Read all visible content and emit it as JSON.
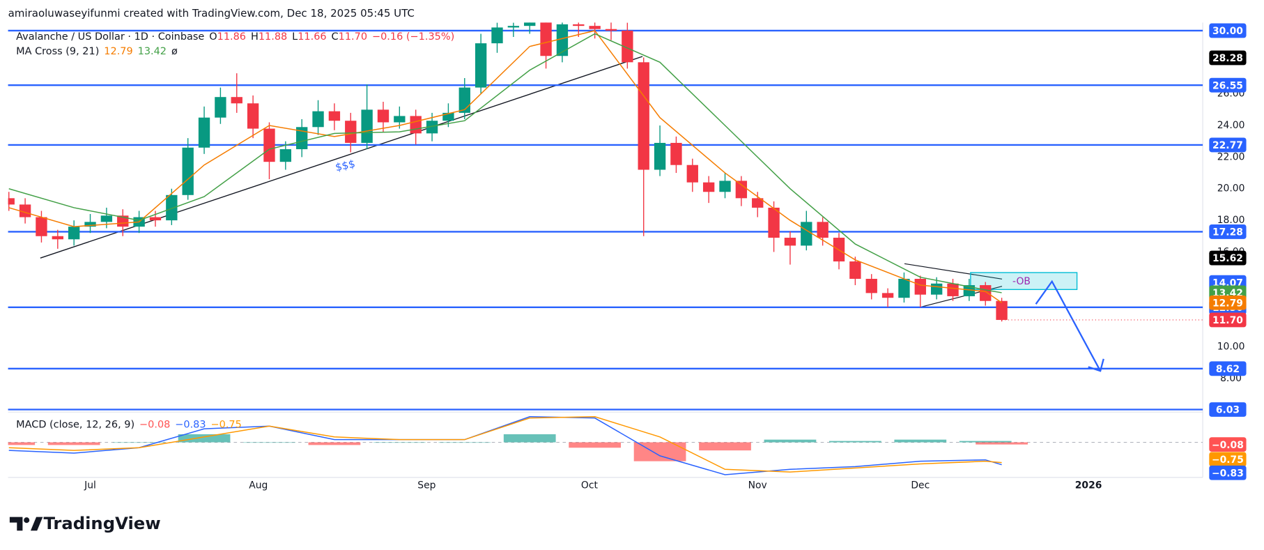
{
  "watermark": "amiraoluwaseyifunmi created with TradingView.com, Dec 18, 2025 05:45 UTC",
  "brand": "TradingView",
  "chart_data": {
    "type": "candlestick",
    "title": "Avalanche / US Dollar · 1D · Coinbase",
    "quote": [
      {
        "key": "O",
        "value": 11.86,
        "label": "11.86"
      },
      {
        "key": "H",
        "value": 11.88,
        "label": "11.88"
      },
      {
        "key": "L",
        "value": 11.66,
        "label": "11.66"
      },
      {
        "key": "C",
        "value": 11.7,
        "label": "11.70"
      }
    ],
    "change": {
      "value": -0.16,
      "label": "−0.16"
    },
    "change_pct": {
      "value": -1.35,
      "label": "(−1.35%)"
    },
    "up_color": "#089981",
    "down_color": "#f23645",
    "open": [
      19.4,
      19.0,
      18.2,
      17.0,
      16.8,
      17.6,
      17.9,
      18.3,
      17.6,
      18.2,
      18.0,
      19.6,
      22.6,
      24.5,
      25.8,
      25.4,
      23.8,
      21.7,
      22.5,
      23.9,
      24.9,
      24.3,
      22.9,
      25.0,
      24.2,
      24.6,
      23.5,
      24.3,
      24.8,
      26.4,
      29.2,
      30.2,
      30.3,
      30.8,
      28.4,
      30.4,
      30.3,
      30.1,
      30.0,
      28.0,
      21.2,
      22.9,
      21.5,
      20.4,
      19.8,
      20.5,
      19.4,
      18.8,
      16.9,
      16.4,
      17.9,
      16.9,
      15.4,
      14.3,
      13.4,
      13.1,
      14.3,
      13.3,
      14.0,
      13.2,
      13.9,
      12.9
    ],
    "high": [
      19.8,
      19.4,
      18.6,
      17.4,
      18.0,
      18.4,
      18.8,
      18.7,
      18.6,
      18.6,
      20.0,
      23.2,
      25.2,
      26.4,
      27.3,
      25.9,
      24.2,
      23.0,
      24.4,
      25.6,
      25.4,
      24.8,
      26.6,
      25.5,
      25.2,
      25.0,
      24.8,
      25.4,
      27.0,
      29.8,
      30.5,
      30.5,
      31.2,
      31.0,
      30.9,
      30.8,
      30.7,
      30.6,
      30.5,
      28.3,
      24.0,
      23.3,
      21.9,
      20.8,
      21.0,
      20.8,
      19.8,
      19.2,
      17.3,
      18.6,
      18.2,
      17.2,
      15.7,
      14.6,
      13.7,
      14.7,
      14.5,
      14.4,
      14.3,
      14.3,
      14.1,
      13.1
    ],
    "low": [
      18.6,
      17.8,
      16.6,
      16.2,
      16.4,
      17.2,
      17.5,
      17.0,
      17.2,
      17.6,
      17.7,
      19.3,
      22.2,
      24.1,
      24.8,
      23.2,
      20.6,
      21.2,
      22.0,
      23.4,
      23.7,
      22.3,
      22.5,
      23.6,
      23.8,
      22.8,
      23.0,
      23.9,
      24.4,
      26.0,
      28.6,
      29.6,
      29.8,
      27.6,
      28.0,
      29.6,
      29.5,
      29.4,
      27.6,
      17.0,
      20.8,
      21.0,
      19.8,
      19.1,
      19.4,
      18.9,
      18.2,
      16.0,
      15.2,
      16.1,
      16.4,
      14.9,
      13.9,
      13.0,
      12.5,
      12.8,
      12.5,
      13.0,
      12.9,
      12.9,
      12.6,
      11.6
    ],
    "close": [
      19.0,
      18.2,
      17.0,
      16.8,
      17.6,
      17.9,
      18.3,
      17.6,
      18.2,
      18.0,
      19.6,
      22.6,
      24.5,
      25.8,
      25.4,
      23.8,
      21.7,
      22.5,
      23.9,
      24.9,
      24.3,
      22.9,
      25.0,
      24.2,
      24.6,
      23.5,
      24.3,
      24.8,
      26.4,
      29.2,
      30.2,
      30.3,
      30.8,
      28.4,
      30.4,
      30.3,
      30.1,
      30.0,
      28.0,
      21.2,
      22.9,
      21.5,
      20.4,
      19.8,
      20.5,
      19.4,
      18.8,
      16.9,
      16.4,
      17.9,
      16.9,
      15.4,
      14.3,
      13.4,
      13.1,
      14.3,
      13.3,
      14.0,
      13.2,
      13.9,
      12.9,
      11.7
    ],
    "xlim": [
      -0.05,
      73.35
    ],
    "xticks": [
      {
        "value": 5,
        "label": "Jul"
      },
      {
        "value": 15.33,
        "label": "Aug"
      },
      {
        "value": 25.67,
        "label": "Sep"
      },
      {
        "value": 35.67,
        "label": "Oct"
      },
      {
        "value": 46,
        "label": "Nov"
      },
      {
        "value": 56,
        "label": "Dec"
      },
      {
        "value": 66.33,
        "label": "2026"
      }
    ],
    "ylim": [
      5.92,
      30.51
    ],
    "yticks": [
      {
        "value": 8,
        "label": "8.00"
      },
      {
        "value": 10,
        "label": "10.00"
      },
      {
        "value": 12,
        "label": "12.00"
      },
      {
        "value": 14,
        "label": "14.00"
      },
      {
        "value": 16,
        "label": "16.00"
      },
      {
        "value": 18,
        "label": "18.00"
      },
      {
        "value": 20,
        "label": "20.00"
      },
      {
        "value": 22,
        "label": "22.00"
      },
      {
        "value": 24,
        "label": "24.00"
      },
      {
        "value": 26,
        "label": "26.00"
      }
    ],
    "level_color": "#2962ff",
    "levels": [
      {
        "value": 30,
        "label": "30.00"
      },
      {
        "value": 26.55,
        "label": "26.55"
      },
      {
        "value": 22.77,
        "label": "22.77"
      },
      {
        "value": 17.28,
        "label": "17.28"
      },
      {
        "value": 12.5,
        "label": "12.50"
      },
      {
        "value": 8.62,
        "label": "8.62"
      },
      {
        "value": 6.03,
        "label": "6.03"
      }
    ],
    "price_tags": [
      {
        "value": 28.28,
        "label": "28.28",
        "color": "#000000"
      },
      {
        "value": 15.62,
        "label": "15.62",
        "color": "#000000"
      },
      {
        "value": 14.07,
        "label": "14.07",
        "color": "#2962ff"
      },
      {
        "value": 13.42,
        "label": "13.42",
        "color": "#43a047"
      },
      {
        "value": 12.79,
        "label": "12.79",
        "color": "#f57c00"
      },
      {
        "value": 11.7,
        "label": "11.70",
        "color": "#f23645"
      }
    ],
    "ma": {
      "name": "MA Cross (9, 21)",
      "symbol": "ø",
      "series": [
        {
          "color": "#f57c00",
          "x": [
            0,
            4,
            8,
            12,
            16,
            20,
            24,
            28,
            32,
            36,
            40,
            44,
            48,
            52,
            56,
            60,
            61
          ],
          "values": [
            18.8,
            17.6,
            17.9,
            21.5,
            24.0,
            23.3,
            24.0,
            25.0,
            29.0,
            30.0,
            24.5,
            21.0,
            18.0,
            15.5,
            13.9,
            13.5,
            12.79
          ],
          "last": {
            "value": 12.79,
            "label": "12.79"
          }
        },
        {
          "color": "#43a047",
          "x": [
            0,
            4,
            8,
            12,
            16,
            20,
            24,
            28,
            32,
            36,
            40,
            44,
            48,
            52,
            56,
            60,
            61
          ],
          "values": [
            20.0,
            18.8,
            18.0,
            19.5,
            22.5,
            23.5,
            23.6,
            24.3,
            27.5,
            29.8,
            28.0,
            24.0,
            20.0,
            16.5,
            14.4,
            13.6,
            13.42
          ],
          "last": {
            "value": 13.42,
            "label": "13.42"
          }
        }
      ]
    },
    "annotations": {
      "liquidity": "$$$",
      "order_block": "-OB"
    },
    "macd": {
      "name": "MACD (close, 12, 26, 9)",
      "ylim": [
        -1.3,
        1.0
      ],
      "x": [
        0,
        4,
        8,
        12,
        16,
        20,
        24,
        28,
        32,
        36,
        40,
        44,
        48,
        52,
        56,
        60,
        61
      ],
      "histogram": {
        "values": [
          -0.1,
          -0.1,
          0,
          0.3,
          0,
          -0.1,
          0,
          0,
          0.3,
          -0.2,
          -0.7,
          -0.3,
          0.1,
          0.05,
          0.1,
          0.05,
          -0.08
        ],
        "up_color": "#26a69a",
        "down_color": "#ff5252",
        "last": {
          "value": -0.08,
          "label": "−0.08"
        }
      },
      "series": [
        {
          "color": "#2962ff",
          "values": [
            -0.3,
            -0.4,
            -0.2,
            0.5,
            0.6,
            0.1,
            0.1,
            0.1,
            0.95,
            0.9,
            -0.5,
            -1.2,
            -1.0,
            -0.9,
            -0.7,
            -0.65,
            -0.83
          ],
          "last": {
            "value": -0.83,
            "label": "−0.83"
          }
        },
        {
          "color": "#ff9800",
          "values": [
            -0.2,
            -0.3,
            -0.2,
            0.2,
            0.6,
            0.2,
            0.1,
            0.1,
            0.9,
            0.95,
            0.2,
            -1.0,
            -1.1,
            -0.95,
            -0.8,
            -0.7,
            -0.75
          ],
          "last": {
            "value": -0.75,
            "label": "−0.75"
          }
        }
      ]
    }
  }
}
